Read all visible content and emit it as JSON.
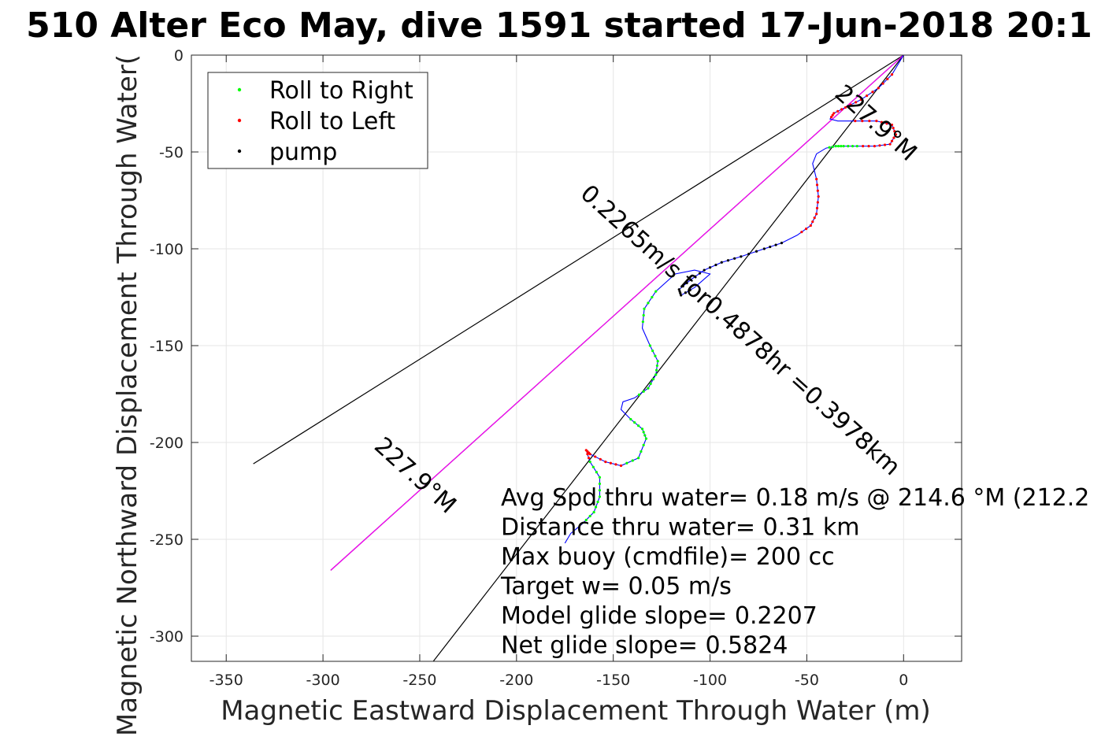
{
  "chart_data": {
    "type": "line",
    "title": "510 Alter Eco May, dive 1591 started 17-Jun-2018 20:1",
    "xlabel": "Magnetic Eastward Displacement Through Water (m)",
    "ylabel": "Magnetic Northward Displacement Through Water(",
    "xlim": [
      -368,
      30
    ],
    "ylim": [
      -313,
      0
    ],
    "xticks": [
      -350,
      -300,
      -250,
      -200,
      -150,
      -100,
      -50,
      0
    ],
    "yticks": [
      0,
      -50,
      -100,
      -150,
      -200,
      -250,
      -300
    ],
    "xtick_labels": [
      "-350",
      "-300",
      "-250",
      "-200",
      "-150",
      "-100",
      "-50",
      "0"
    ],
    "ytick_labels": [
      "0",
      "-50",
      "-100",
      "-150",
      "-200",
      "-250",
      "-300"
    ],
    "grid": true,
    "legend": {
      "position": "top-left",
      "entries": [
        {
          "label": "Roll to Right",
          "color": "#00ff00"
        },
        {
          "label": "Roll to Left",
          "color": "#ff0000"
        },
        {
          "label": "pump",
          "color": "#000000"
        }
      ]
    },
    "track": {
      "color": "#0000ff",
      "x": [
        0,
        -6,
        -13,
        -22,
        -30,
        -36,
        -38,
        -34,
        -25,
        -14,
        -6,
        -4,
        -7,
        -15,
        -24,
        -31,
        -35,
        -40,
        -45,
        -47,
        -45,
        -44,
        -45,
        -48,
        -55,
        -63,
        -72,
        -84,
        -94,
        -103,
        -110,
        -116,
        -115,
        -108,
        -100,
        -108,
        -118,
        -128,
        -134,
        -135,
        -131,
        -127,
        -128,
        -132,
        -139,
        -145,
        -146,
        -141,
        -135,
        -133,
        -137,
        -146,
        -154,
        -162,
        -164,
        -162,
        -157,
        -157,
        -160,
        -166,
        -172,
        -175
      ],
      "y": [
        0,
        -10,
        -17,
        -23,
        -27,
        -30,
        -33,
        -34,
        -34,
        -34,
        -36,
        -41,
        -46,
        -47,
        -47,
        -47,
        -47,
        -48,
        -51,
        -56,
        -64,
        -73,
        -82,
        -88,
        -93,
        -97,
        -100,
        -104,
        -107,
        -111,
        -116,
        -121,
        -124,
        -120,
        -113,
        -111,
        -113,
        -122,
        -131,
        -141,
        -150,
        -158,
        -165,
        -172,
        -177,
        -179,
        -183,
        -188,
        -193,
        -198,
        -208,
        -212,
        -210,
        -206,
        -204,
        -210,
        -218,
        -228,
        -236,
        -242,
        -247,
        -252
      ]
    },
    "overlay_lines": [
      {
        "color": "#000000",
        "x": [
          0,
          -336
        ],
        "y": [
          0,
          -211
        ]
      },
      {
        "color": "#000000",
        "x": [
          0,
          -243
        ],
        "y": [
          0,
          -313
        ]
      },
      {
        "color": "#000000",
        "x": [
          0,
          -296
        ],
        "y": [
          0,
          -266
        ]
      },
      {
        "color": "#ff00ff",
        "x": [
          0,
          -296
        ],
        "y": [
          0,
          -266
        ]
      }
    ],
    "rotated_annotations": [
      {
        "text": "227.9°M",
        "x": -17,
        "y": -38,
        "angle_deg": -138
      },
      {
        "text": "0.2265m/s for0.4878hr =0.3978km",
        "x": -87,
        "y": -145,
        "angle_deg": -138
      },
      {
        "text": "227.9°M",
        "x": -255,
        "y": -220,
        "angle_deg": -138
      }
    ],
    "stats_text": [
      "Avg Spd thru water=  0.18 m/s @ 214.6 °M (212.2",
      "Distance thru water=  0.31 km",
      "Max buoy (cmdfile)= 200 cc",
      "Target w= 0.05 m/s",
      "Model glide slope= 0.2207",
      "Net glide slope= 0.5824"
    ]
  }
}
